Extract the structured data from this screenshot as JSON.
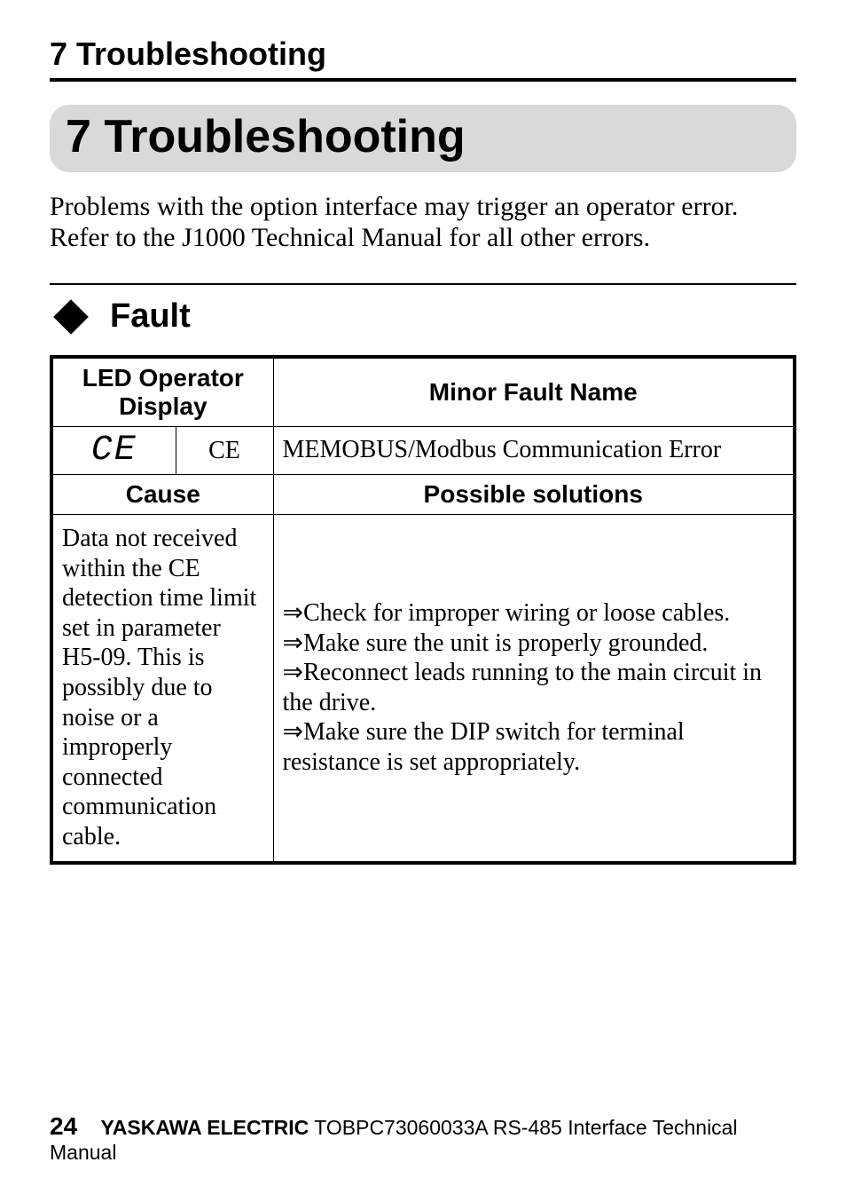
{
  "running_head": "7  Troubleshooting",
  "chapter_title": "7  Troubleshooting",
  "intro": "Problems with the option interface may trigger an operator error. Refer to the J1000 Technical Manual for all other errors.",
  "section_title": "Fault",
  "table": {
    "header_led": "LED Operator Display",
    "header_fault_name": "Minor Fault Name",
    "row1": {
      "seg_display": "CE",
      "code": "CE",
      "fault_name": "MEMOBUS/Modbus Communication Error"
    },
    "header_cause": "Cause",
    "header_solutions": "Possible solutions",
    "row2": {
      "cause": "Data not received within the CE detection time limit set in parameter H5-09. This is possibly due to noise or a improperly connected communication cable.",
      "solutions": [
        "⇒Check for improper wiring or loose cables.",
        "⇒Make sure the unit is properly grounded.",
        "⇒Reconnect leads running to the main circuit in the drive.",
        "⇒Make sure the DIP switch for terminal resistance is set appropriately."
      ]
    }
  },
  "footer": {
    "page": "24",
    "brand": "YASKAWA ELECTRIC",
    "doc": " TOBPC73060033A RS-485 Interface Technical Manual"
  }
}
